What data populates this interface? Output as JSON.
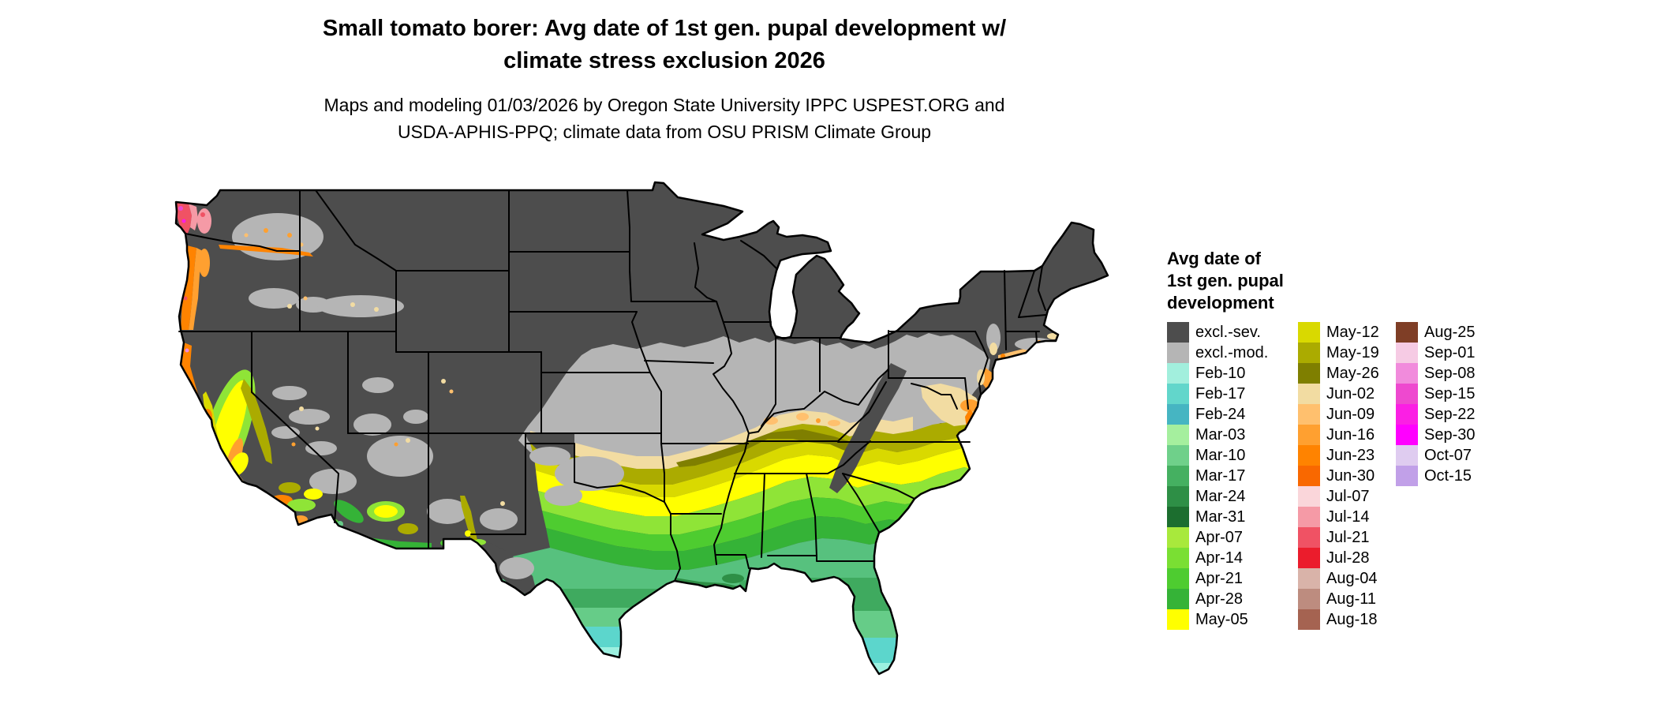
{
  "title": {
    "line1": "Small tomato borer: Avg date of 1st gen. pupal development w/",
    "line2": "climate stress exclusion 2026"
  },
  "subtitle": {
    "line1": "Maps and modeling 01/03/2026 by Oregon State University IPPC USPEST.ORG and",
    "line2": "USDA-APHIS-PPQ; climate data from OSU PRISM Climate Group"
  },
  "map": {
    "border_color": "#000000",
    "background": "#ffffff"
  },
  "legend": {
    "title_lines": [
      "Avg date of",
      "1st gen. pupal",
      "development"
    ],
    "columns": [
      {
        "entries": [
          {
            "label": "excl.-sev.",
            "color": "#4D4D4D"
          },
          {
            "label": "excl.-mod.",
            "color": "#B5B5B5"
          },
          {
            "label": "Feb-10",
            "color": "#A2EFDD"
          },
          {
            "label": "Feb-17",
            "color": "#62D6CB"
          },
          {
            "label": "Feb-24",
            "color": "#46B5C2"
          },
          {
            "label": "Mar-03",
            "color": "#A5EF9E"
          },
          {
            "label": "Mar-10",
            "color": "#6FD08A"
          },
          {
            "label": "Mar-17",
            "color": "#45B061"
          },
          {
            "label": "Mar-24",
            "color": "#2E8F46"
          },
          {
            "label": "Mar-31",
            "color": "#1C6E2F"
          },
          {
            "label": "Apr-07",
            "color": "#A8E93C"
          },
          {
            "label": "Apr-14",
            "color": "#7ADF33"
          },
          {
            "label": "Apr-21",
            "color": "#4ECC30"
          },
          {
            "label": "Apr-28",
            "color": "#35B337"
          },
          {
            "label": "May-05",
            "color": "#FFFF00"
          }
        ]
      },
      {
        "entries": [
          {
            "label": "May-12",
            "color": "#D9D900"
          },
          {
            "label": "May-19",
            "color": "#ABAB00"
          },
          {
            "label": "May-26",
            "color": "#7F7F00"
          },
          {
            "label": "Jun-02",
            "color": "#F2DCA2"
          },
          {
            "label": "Jun-09",
            "color": "#FFC06E"
          },
          {
            "label": "Jun-16",
            "color": "#FFA030"
          },
          {
            "label": "Jun-23",
            "color": "#FF8300"
          },
          {
            "label": "Jun-30",
            "color": "#F96800"
          },
          {
            "label": "Jul-07",
            "color": "#FAD6DA"
          },
          {
            "label": "Jul-14",
            "color": "#F59AA6"
          },
          {
            "label": "Jul-21",
            "color": "#F05264"
          },
          {
            "label": "Jul-28",
            "color": "#EB1C2C"
          },
          {
            "label": "Aug-04",
            "color": "#D9B3A9"
          },
          {
            "label": "Aug-11",
            "color": "#BD8C7F"
          },
          {
            "label": "Aug-18",
            "color": "#A56351"
          }
        ]
      },
      {
        "entries": [
          {
            "label": "Aug-25",
            "color": "#7F3E26"
          },
          {
            "label": "Sep-01",
            "color": "#F6CBE4"
          },
          {
            "label": "Sep-08",
            "color": "#F18BDC"
          },
          {
            "label": "Sep-15",
            "color": "#EE49CF"
          },
          {
            "label": "Sep-22",
            "color": "#FB1FE4"
          },
          {
            "label": "Sep-30",
            "color": "#FF00FF"
          },
          {
            "label": "Oct-07",
            "color": "#DFCCF0"
          },
          {
            "label": "Oct-15",
            "color": "#C1A0E8"
          }
        ]
      }
    ]
  }
}
